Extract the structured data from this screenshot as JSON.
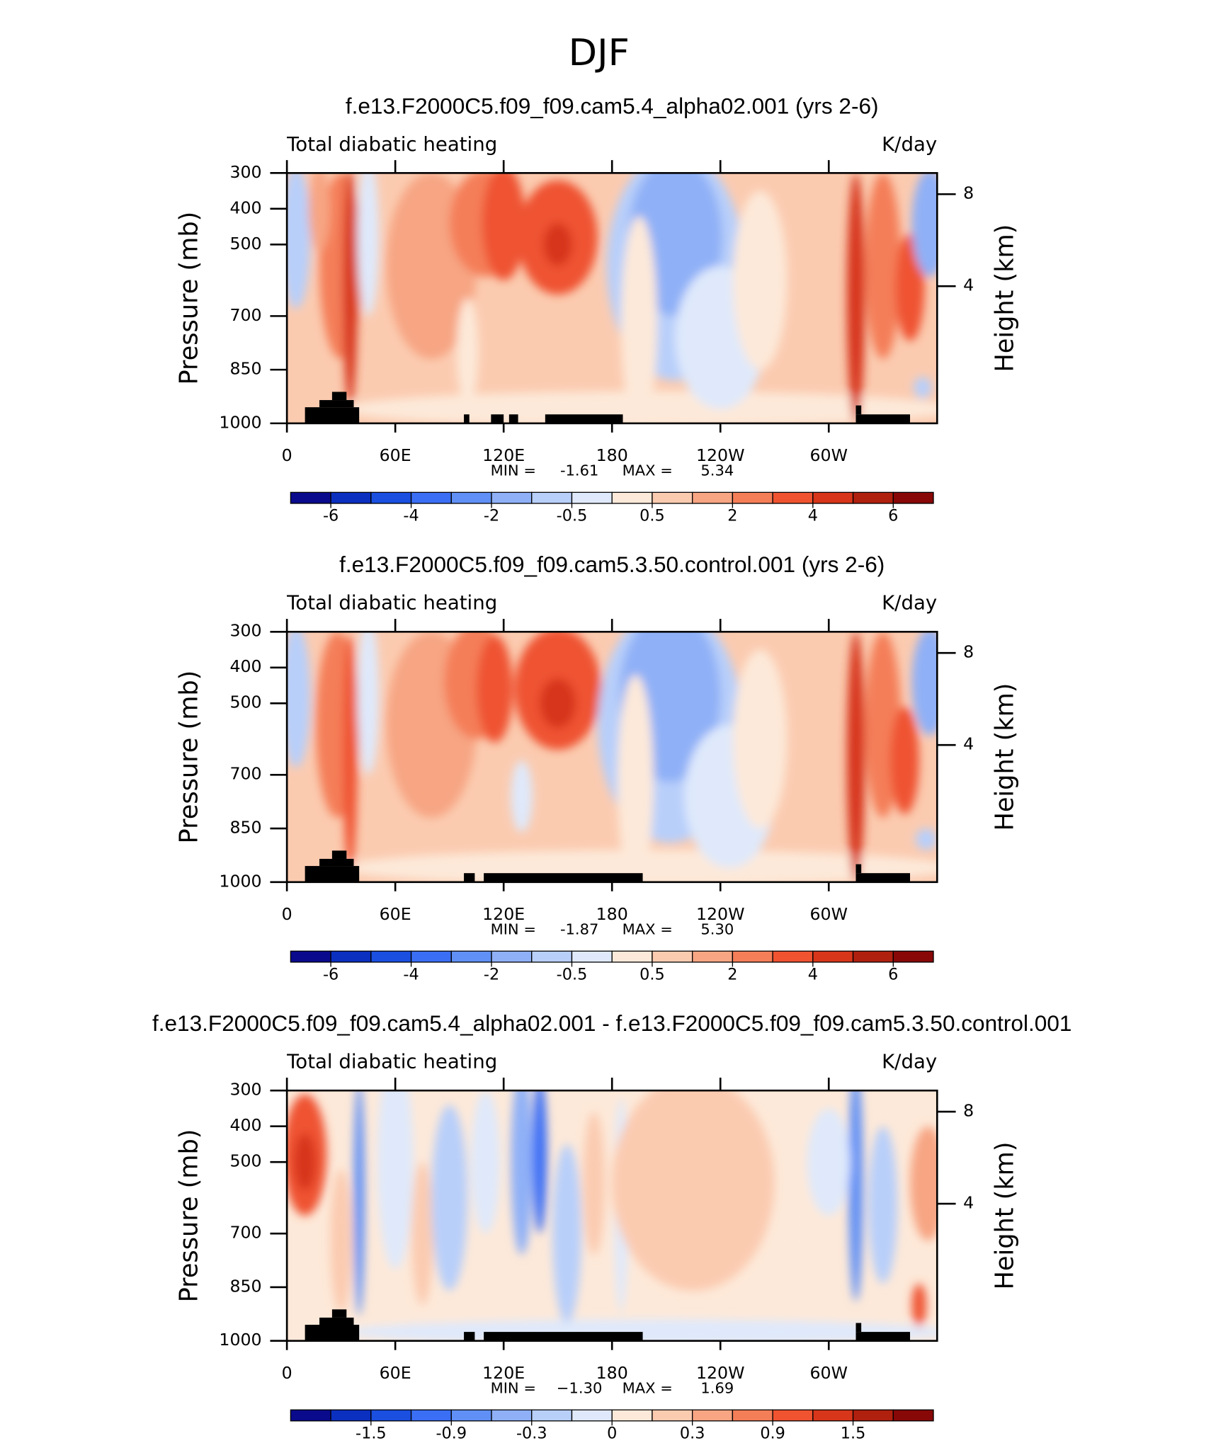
{
  "title": "DJF",
  "chart_data": [
    {
      "type": "contour",
      "title": "f.e13.F2000C5.f09_f09.cam5.4_alpha02.001 (yrs 2-6)",
      "left_string": "Total diabatic heating",
      "right_string": "K/day",
      "ylabel": "Pressure (mb)",
      "y2label": "Height (km)",
      "xlim": [
        0,
        360
      ],
      "xticks": [
        0,
        {
          "value": 60,
          "label": "60E"
        },
        {
          "value": 120,
          "label": "120E"
        },
        180,
        {
          "value": 240,
          "label": "120W"
        },
        {
          "value": 300,
          "label": "60W"
        }
      ],
      "ylim": [
        1000,
        300
      ],
      "yticks": [
        300,
        400,
        500,
        700,
        850,
        1000
      ],
      "y2lim": [
        -1.96,
        8.92
      ],
      "y2ticks": [
        4,
        8
      ],
      "min_label": "MIN =",
      "min": -1.61,
      "max_label": "MAX =",
      "max": 5.34,
      "colorbar": {
        "colors": [
          "#0a0a8c",
          "#0b2fbf",
          "#1a4fe0",
          "#3a6ef5",
          "#6090f5",
          "#8fb0f7",
          "#b8cffa",
          "#dfe9fb",
          "#fde9d9",
          "#fbcbb0",
          "#f7a583",
          "#f47e58",
          "#ef5330",
          "#d7361a",
          "#b0200f",
          "#880808"
        ],
        "ticks": [
          -6,
          null,
          -4,
          null,
          -2,
          null,
          -0.5,
          null,
          0.5,
          null,
          2,
          null,
          4,
          null,
          6
        ]
      }
    },
    {
      "type": "contour",
      "title": "f.e13.F2000C5.f09_f09.cam5.3.50.control.001 (yrs 2-6)",
      "left_string": "Total diabatic heating",
      "right_string": "K/day",
      "ylabel": "Pressure (mb)",
      "y2label": "Height (km)",
      "xlim": [
        0,
        360
      ],
      "xticks": [
        0,
        {
          "value": 60,
          "label": "60E"
        },
        {
          "value": 120,
          "label": "120E"
        },
        180,
        {
          "value": 240,
          "label": "120W"
        },
        {
          "value": 300,
          "label": "60W"
        }
      ],
      "ylim": [
        1000,
        300
      ],
      "yticks": [
        300,
        400,
        500,
        700,
        850,
        1000
      ],
      "y2lim": [
        -1.96,
        8.92
      ],
      "y2ticks": [
        4,
        8
      ],
      "min_label": "MIN =",
      "min": -1.87,
      "max_label": "MAX =",
      "max": {
        "value": 5.3,
        "label": "5.30"
      },
      "colorbar": {
        "colors": [
          "#0a0a8c",
          "#0b2fbf",
          "#1a4fe0",
          "#3a6ef5",
          "#6090f5",
          "#8fb0f7",
          "#b8cffa",
          "#dfe9fb",
          "#fde9d9",
          "#fbcbb0",
          "#f7a583",
          "#f47e58",
          "#ef5330",
          "#d7361a",
          "#b0200f",
          "#880808"
        ],
        "ticks": [
          -6,
          null,
          -4,
          null,
          -2,
          null,
          -0.5,
          null,
          0.5,
          null,
          2,
          null,
          4,
          null,
          6
        ]
      }
    },
    {
      "type": "contour",
      "title": "f.e13.F2000C5.f09_f09.cam5.4_alpha02.001 - f.e13.F2000C5.f09_f09.cam5.3.50.control.001",
      "left_string": "Total diabatic heating",
      "right_string": "K/day",
      "ylabel": "Pressure (mb)",
      "y2label": "Height (km)",
      "xlim": [
        0,
        360
      ],
      "xticks": [
        0,
        {
          "value": 60,
          "label": "60E"
        },
        {
          "value": 120,
          "label": "120E"
        },
        180,
        {
          "value": 240,
          "label": "120W"
        },
        {
          "value": 300,
          "label": "60W"
        }
      ],
      "ylim": [
        1000,
        300
      ],
      "yticks": [
        300,
        400,
        500,
        700,
        850,
        1000
      ],
      "y2lim": [
        -1.96,
        8.92
      ],
      "y2ticks": [
        4,
        8
      ],
      "min_label": "MIN =",
      "min": {
        "value": -1.3,
        "label": "−1.30"
      },
      "max_label": "MAX =",
      "max": 1.69,
      "colorbar": {
        "colors": [
          "#0a0a8c",
          "#0b2fbf",
          "#1a4fe0",
          "#3a6ef5",
          "#6090f5",
          "#8fb0f7",
          "#b8cffa",
          "#dfe9fb",
          "#fde9d9",
          "#fbcbb0",
          "#f7a583",
          "#f47e58",
          "#ef5330",
          "#d7361a",
          "#b0200f",
          "#880808"
        ],
        "ticks": [
          null,
          -1.5,
          null,
          -0.9,
          null,
          -0.3,
          null,
          0,
          null,
          0.3,
          null,
          0.9,
          null,
          1.5,
          null
        ]
      }
    }
  ]
}
